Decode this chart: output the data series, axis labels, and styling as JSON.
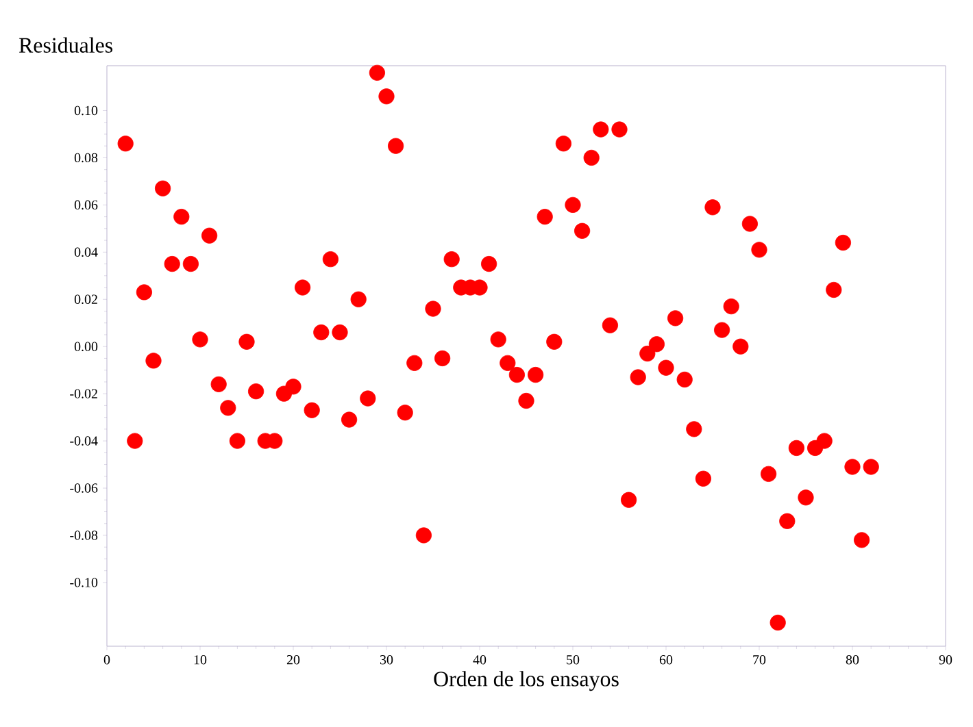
{
  "chart_data": {
    "type": "scatter",
    "xlabel": "Orden de los ensayos",
    "ylabel": "Residuales",
    "marker": "circle",
    "grid": false,
    "xlim": [
      0,
      90
    ],
    "ylim": [
      -0.127,
      0.119
    ],
    "xticks": [
      0,
      10,
      20,
      30,
      40,
      50,
      60,
      70,
      80,
      90
    ],
    "yticks": [
      {
        "value": -0.1,
        "label": "-0.10"
      },
      {
        "value": -0.08,
        "label": "-0.08"
      },
      {
        "value": -0.06,
        "label": "-0.06"
      },
      {
        "value": -0.04,
        "label": "-0.04"
      },
      {
        "value": -0.02,
        "label": "-0.02"
      },
      {
        "value": 0,
        "label": "0.00"
      },
      {
        "value": 0.02,
        "label": "0.02"
      },
      {
        "value": 0.04,
        "label": "0.04"
      },
      {
        "value": 0.06,
        "label": "0.06"
      },
      {
        "value": 0.08,
        "label": "0.08"
      },
      {
        "value": 0.1,
        "label": "0.10"
      }
    ],
    "series": [
      {
        "color": "#ff0000",
        "x": [
          2,
          3,
          4,
          5,
          6,
          7,
          8,
          9,
          10,
          11,
          12,
          13,
          14,
          15,
          16,
          17,
          18,
          19,
          20,
          21,
          22,
          23,
          24,
          25,
          26,
          27,
          28,
          29,
          30,
          31,
          32,
          33,
          34,
          35,
          36,
          37,
          38,
          39,
          40,
          41,
          42,
          43,
          44,
          45,
          46,
          47,
          48,
          49,
          50,
          51,
          52,
          53,
          54,
          55,
          56,
          57,
          58,
          59,
          60,
          61,
          62,
          63,
          64,
          65,
          66,
          67,
          68,
          69,
          70,
          71,
          72,
          73,
          74,
          75,
          76,
          77,
          78,
          79,
          80,
          81,
          82
        ],
        "values": [
          0.086,
          -0.04,
          0.023,
          -0.006,
          0.067,
          0.035,
          0.055,
          0.035,
          0.003,
          0.047,
          -0.016,
          -0.026,
          -0.04,
          0.002,
          -0.019,
          -0.04,
          -0.04,
          -0.02,
          -0.017,
          0.025,
          -0.027,
          0.006,
          0.037,
          0.006,
          -0.031,
          0.02,
          -0.022,
          0.116,
          0.106,
          0.085,
          -0.028,
          -0.007,
          -0.08,
          0.016,
          -0.005,
          0.037,
          0.025,
          0.025,
          0.025,
          0.035,
          0.003,
          -0.007,
          -0.012,
          -0.023,
          -0.012,
          0.055,
          0.002,
          0.086,
          0.06,
          0.049,
          0.08,
          0.092,
          0.009,
          0.092,
          -0.065,
          -0.013,
          -0.003,
          0.001,
          -0.009,
          0.012,
          -0.014,
          -0.035,
          -0.056,
          0.059,
          0.007,
          0.017,
          0.0,
          0.052,
          0.041,
          -0.054,
          -0.117,
          -0.074,
          -0.043,
          -0.064,
          -0.043,
          -0.04,
          0.024,
          0.044,
          -0.051,
          -0.082,
          -0.051
        ]
      }
    ]
  }
}
